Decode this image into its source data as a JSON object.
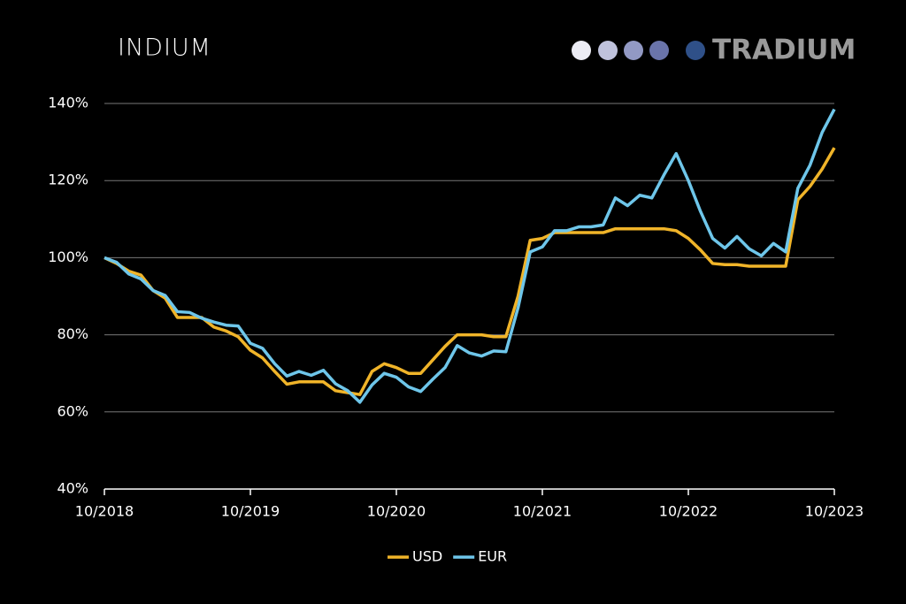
{
  "chart_data": {
    "type": "line",
    "title": "INDIUM",
    "logo": "TRADIUM",
    "x": [
      "10/2018",
      "11/2018",
      "12/2018",
      "01/2019",
      "02/2019",
      "03/2019",
      "04/2019",
      "05/2019",
      "06/2019",
      "07/2019",
      "08/2019",
      "09/2019",
      "10/2019",
      "11/2019",
      "12/2019",
      "01/2020",
      "02/2020",
      "03/2020",
      "04/2020",
      "05/2020",
      "06/2020",
      "07/2020",
      "08/2020",
      "09/2020",
      "10/2020",
      "11/2020",
      "12/2020",
      "01/2021",
      "02/2021",
      "03/2021",
      "04/2021",
      "05/2021",
      "06/2021",
      "07/2021",
      "08/2021",
      "09/2021",
      "10/2021",
      "11/2021",
      "12/2021",
      "01/2022",
      "02/2022",
      "03/2022",
      "04/2022",
      "05/2022",
      "06/2022",
      "07/2022",
      "08/2022",
      "09/2022",
      "10/2022",
      "11/2022",
      "12/2022",
      "01/2023",
      "02/2023",
      "03/2023",
      "04/2023",
      "05/2023",
      "06/2023",
      "07/2023",
      "08/2023",
      "09/2023",
      "10/2023"
    ],
    "xticks": [
      "10/2018",
      "10/2019",
      "10/2020",
      "10/2021",
      "10/2022",
      "10/2023"
    ],
    "series": [
      {
        "name": "USD",
        "color": "#f0b429",
        "values": [
          100,
          98.5,
          96.5,
          95.5,
          91.5,
          89.5,
          84.5,
          84.5,
          84.5,
          82,
          81,
          79.5,
          76,
          74,
          70.5,
          67.2,
          67.8,
          67.8,
          67.8,
          65.5,
          65,
          64.5,
          70.5,
          72.5,
          71.5,
          70,
          70,
          73.5,
          77,
          80,
          80,
          80,
          79.5,
          79.5,
          90,
          104.5,
          105,
          106.5,
          106.5,
          106.5,
          106.5,
          106.5,
          107.5,
          107.5,
          107.5,
          107.5,
          107.5,
          107,
          105,
          102,
          98.5,
          98.2,
          98.2,
          97.8,
          97.8,
          97.8,
          97.8,
          115,
          118.5,
          123,
          128.5
        ]
      },
      {
        "name": "EUR",
        "color": "#6ec6ea",
        "values": [
          100,
          98.8,
          95.8,
          94.5,
          91.5,
          90.2,
          86,
          85.8,
          84.3,
          83.3,
          82.5,
          82.3,
          77.8,
          76.5,
          72.5,
          69.3,
          70.5,
          69.5,
          70.8,
          67.3,
          65.5,
          62.5,
          67,
          70,
          69,
          66.5,
          65.3,
          68.5,
          71.5,
          77.2,
          75.3,
          74.5,
          75.8,
          75.6,
          87,
          101.5,
          102.8,
          107,
          107,
          108,
          108,
          108.5,
          115.5,
          113.5,
          116.2,
          115.5,
          121.5,
          127,
          120,
          112,
          105,
          102.5,
          105.5,
          102.3,
          100.5,
          103.7,
          101.5,
          118,
          124,
          132.5,
          138.5
        ]
      }
    ],
    "ylim": [
      40,
      140
    ],
    "yticks": [
      {
        "value": 40,
        "label": "40%"
      },
      {
        "value": 60,
        "label": "60%"
      },
      {
        "value": 80,
        "label": "80%"
      },
      {
        "value": 100,
        "label": "100%"
      },
      {
        "value": 120,
        "label": "120%"
      },
      {
        "value": 140,
        "label": "140%"
      }
    ],
    "grid": true
  }
}
